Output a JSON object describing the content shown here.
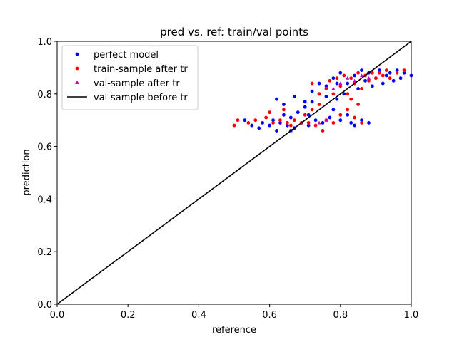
{
  "chart_data": {
    "type": "scatter",
    "title": "pred vs. ref: train/val points",
    "xlabel": "reference",
    "ylabel": "prediction",
    "xlim": [
      0.0,
      1.0
    ],
    "ylim": [
      0.0,
      1.0
    ],
    "xticks": [
      "0.0",
      "0.2",
      "0.4",
      "0.6",
      "0.8",
      "1.0"
    ],
    "yticks": [
      "0.0",
      "0.2",
      "0.4",
      "0.6",
      "0.8",
      "1.0"
    ],
    "grid": false,
    "legend_position": "top-left",
    "series": [
      {
        "name": "perfect model",
        "kind": "scatter",
        "marker": "circle",
        "color": "#0000ff",
        "points": [
          [
            0.53,
            0.7
          ],
          [
            0.55,
            0.68
          ],
          [
            0.57,
            0.67
          ],
          [
            0.58,
            0.69
          ],
          [
            0.6,
            0.68
          ],
          [
            0.61,
            0.7
          ],
          [
            0.62,
            0.66
          ],
          [
            0.63,
            0.69
          ],
          [
            0.64,
            0.72
          ],
          [
            0.65,
            0.68
          ],
          [
            0.66,
            0.71
          ],
          [
            0.67,
            0.67
          ],
          [
            0.68,
            0.73
          ],
          [
            0.69,
            0.69
          ],
          [
            0.7,
            0.75
          ],
          [
            0.71,
            0.68
          ],
          [
            0.72,
            0.77
          ],
          [
            0.73,
            0.7
          ],
          [
            0.74,
            0.8
          ],
          [
            0.75,
            0.69
          ],
          [
            0.76,
            0.83
          ],
          [
            0.77,
            0.71
          ],
          [
            0.78,
            0.86
          ],
          [
            0.79,
            0.78
          ],
          [
            0.8,
            0.88
          ],
          [
            0.81,
            0.8
          ],
          [
            0.82,
            0.84
          ],
          [
            0.83,
            0.69
          ],
          [
            0.84,
            0.87
          ],
          [
            0.85,
            0.82
          ],
          [
            0.86,
            0.89
          ],
          [
            0.87,
            0.85
          ],
          [
            0.88,
            0.88
          ],
          [
            0.89,
            0.83
          ],
          [
            0.9,
            0.86
          ],
          [
            0.91,
            0.89
          ],
          [
            0.92,
            0.84
          ],
          [
            0.93,
            0.87
          ],
          [
            0.94,
            0.88
          ],
          [
            0.95,
            0.85
          ],
          [
            0.96,
            0.89
          ],
          [
            0.97,
            0.86
          ],
          [
            0.98,
            0.88
          ],
          [
            1.0,
            0.87
          ],
          [
            0.62,
            0.78
          ],
          [
            0.64,
            0.76
          ],
          [
            0.67,
            0.79
          ],
          [
            0.7,
            0.77
          ],
          [
            0.72,
            0.81
          ],
          [
            0.74,
            0.84
          ],
          [
            0.76,
            0.79
          ],
          [
            0.78,
            0.74
          ],
          [
            0.8,
            0.7
          ],
          [
            0.82,
            0.72
          ],
          [
            0.84,
            0.68
          ],
          [
            0.86,
            0.7
          ],
          [
            0.88,
            0.69
          ],
          [
            0.66,
            0.66
          ],
          [
            0.71,
            0.72
          ],
          [
            0.79,
            0.84
          ]
        ]
      },
      {
        "name": "train-sample after tr",
        "kind": "scatter",
        "marker": "circle",
        "color": "#ff0000",
        "points": [
          [
            0.5,
            0.68
          ],
          [
            0.51,
            0.7
          ],
          [
            0.54,
            0.69
          ],
          [
            0.56,
            0.7
          ],
          [
            0.59,
            0.71
          ],
          [
            0.61,
            0.69
          ],
          [
            0.63,
            0.7
          ],
          [
            0.65,
            0.69
          ],
          [
            0.67,
            0.7
          ],
          [
            0.69,
            0.69
          ],
          [
            0.7,
            0.72
          ],
          [
            0.71,
            0.69
          ],
          [
            0.72,
            0.74
          ],
          [
            0.73,
            0.68
          ],
          [
            0.74,
            0.76
          ],
          [
            0.75,
            0.66
          ],
          [
            0.76,
            0.82
          ],
          [
            0.77,
            0.85
          ],
          [
            0.78,
            0.8
          ],
          [
            0.79,
            0.86
          ],
          [
            0.8,
            0.83
          ],
          [
            0.81,
            0.87
          ],
          [
            0.82,
            0.8
          ],
          [
            0.83,
            0.86
          ],
          [
            0.84,
            0.84
          ],
          [
            0.85,
            0.88
          ],
          [
            0.86,
            0.82
          ],
          [
            0.87,
            0.87
          ],
          [
            0.88,
            0.85
          ],
          [
            0.89,
            0.88
          ],
          [
            0.9,
            0.86
          ],
          [
            0.91,
            0.88
          ],
          [
            0.92,
            0.87
          ],
          [
            0.93,
            0.89
          ],
          [
            0.94,
            0.86
          ],
          [
            0.96,
            0.88
          ],
          [
            0.98,
            0.89
          ],
          [
            0.72,
            0.84
          ],
          [
            0.74,
            0.8
          ],
          [
            0.8,
            0.72
          ],
          [
            0.82,
            0.74
          ],
          [
            0.84,
            0.71
          ],
          [
            0.86,
            0.69
          ],
          [
            0.78,
            0.69
          ],
          [
            0.6,
            0.73
          ],
          [
            0.64,
            0.74
          ],
          [
            0.66,
            0.68
          ],
          [
            0.76,
            0.7
          ],
          [
            0.83,
            0.78
          ],
          [
            0.85,
            0.76
          ]
        ]
      },
      {
        "name": "val-sample after tr",
        "kind": "scatter",
        "marker": "triangle",
        "color": "#bf00bf",
        "points": [
          [
            0.82,
            0.86
          ],
          [
            0.84,
            0.85
          ],
          [
            0.86,
            0.87
          ],
          [
            0.8,
            0.84
          ],
          [
            0.78,
            0.82
          ],
          [
            0.88,
            0.86
          ],
          [
            0.76,
            0.7
          ],
          [
            0.74,
            0.69
          ]
        ]
      },
      {
        "name": "val-sample before tr",
        "kind": "line",
        "color": "#000000",
        "points": [
          [
            0.0,
            0.0
          ],
          [
            1.0,
            1.0
          ]
        ]
      }
    ]
  }
}
